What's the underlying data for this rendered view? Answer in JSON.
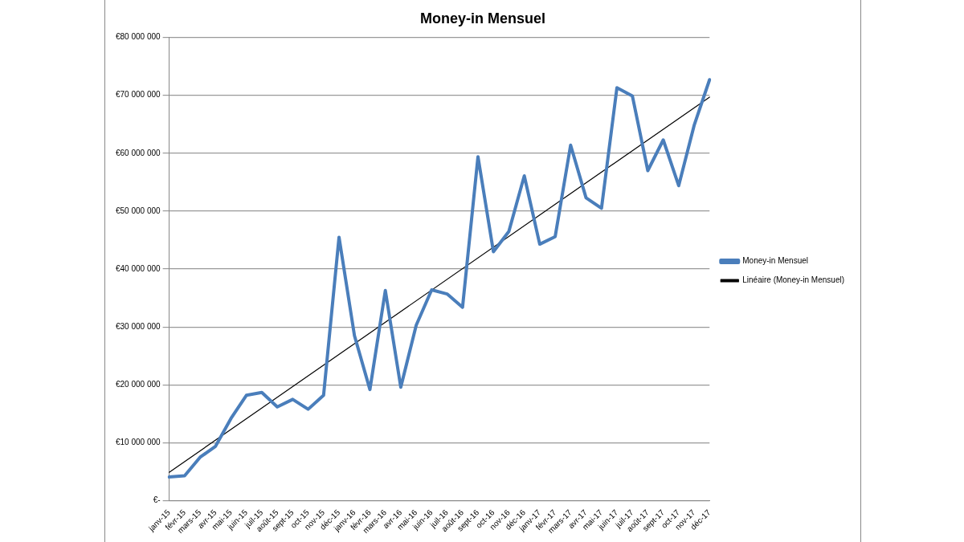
{
  "chart_data": {
    "type": "line",
    "title": "Money-in Mensuel",
    "categories": [
      "janv-15",
      "févr-15",
      "mars-15",
      "avr-15",
      "mai-15",
      "juin-15",
      "juil-15",
      "août-15",
      "sept-15",
      "oct-15",
      "nov-15",
      "déc-15",
      "janv-16",
      "févr-16",
      "mars-16",
      "avr-16",
      "mai-16",
      "juin-16",
      "juil-16",
      "août-16",
      "sept-16",
      "oct-16",
      "nov-16",
      "déc-16",
      "janv-17",
      "févr-17",
      "mars-17",
      "avr-17",
      "mai-17",
      "juin-17",
      "juil-17",
      "août-17",
      "sept-17",
      "oct-17",
      "nov-17",
      "déc-17"
    ],
    "series": [
      {
        "name": "Money-in Mensuel",
        "color": "#4a7ebb",
        "values": [
          4100000,
          4300000,
          7500000,
          9400000,
          14200000,
          18200000,
          18700000,
          16200000,
          17500000,
          15800000,
          18200000,
          45500000,
          28500000,
          19200000,
          36300000,
          19600000,
          30300000,
          36400000,
          35700000,
          33400000,
          59400000,
          43000000,
          46500000,
          56100000,
          44300000,
          45600000,
          61400000,
          52300000,
          50500000,
          71300000,
          69900000,
          57000000,
          62300000,
          54400000,
          64800000,
          72700000
        ]
      },
      {
        "name": "Linéaire (Money-in Mensuel)",
        "color": "#000000",
        "values": [
          4900000,
          null,
          null,
          null,
          null,
          null,
          null,
          null,
          null,
          null,
          null,
          null,
          null,
          null,
          null,
          null,
          null,
          null,
          null,
          null,
          null,
          null,
          null,
          null,
          null,
          null,
          null,
          null,
          null,
          null,
          null,
          null,
          null,
          null,
          null,
          69700000
        ]
      }
    ],
    "ylim": [
      0,
      80000000
    ],
    "yticks": [
      {
        "value": 0,
        "label": "€-"
      },
      {
        "value": 10000000,
        "label": "€10 000 000"
      },
      {
        "value": 20000000,
        "label": "€20 000 000"
      },
      {
        "value": 30000000,
        "label": "€30 000 000"
      },
      {
        "value": 40000000,
        "label": "€40 000 000"
      },
      {
        "value": 50000000,
        "label": "€50 000 000"
      },
      {
        "value": 60000000,
        "label": "€60 000 000"
      },
      {
        "value": 70000000,
        "label": "€70 000 000"
      },
      {
        "value": 80000000,
        "label": "€80 000 000"
      }
    ],
    "grid": "y",
    "legend": "right",
    "marker": "none"
  }
}
